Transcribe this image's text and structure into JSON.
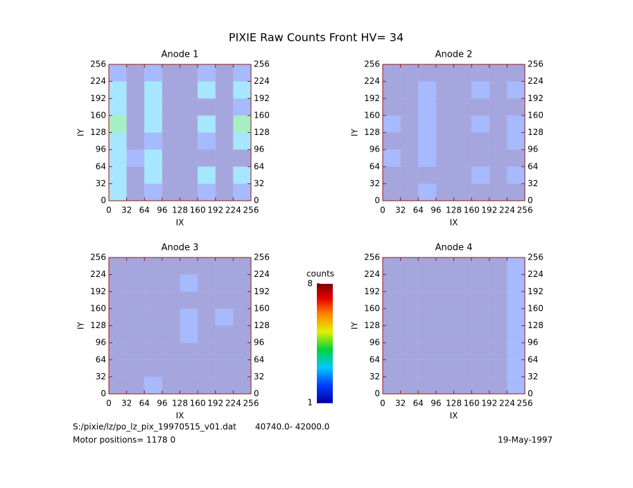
{
  "title": "PIXIE Raw Counts Front HV= 34",
  "colorbar": {
    "label": "counts",
    "lim": [
      1,
      8
    ],
    "ticks": [
      1,
      8
    ]
  },
  "footer": {
    "file": "S:/pixie/lz/po_lz_pix_19970515_v01.dat",
    "range": "40740.0- 42000.0",
    "motor": "Motor positions= 1178 0",
    "date": "19-May-1997"
  },
  "chart_data": [
    {
      "type": "heatmap",
      "title": "Anode 1",
      "xlabel": "IX",
      "ylabel": "IY",
      "xlim": [
        0,
        256
      ],
      "ylim": [
        0,
        256
      ],
      "xticks": [
        0,
        32,
        64,
        96,
        128,
        160,
        192,
        224,
        256
      ],
      "yticks": [
        0,
        32,
        64,
        96,
        128,
        160,
        192,
        224,
        256
      ],
      "z": [
        [
          3,
          1,
          2,
          1,
          1,
          2,
          1,
          2
        ],
        [
          3,
          1,
          3,
          1,
          1,
          3,
          1,
          3
        ],
        [
          3,
          2,
          3,
          1,
          1,
          1,
          1,
          1
        ],
        [
          3,
          1,
          2,
          1,
          1,
          2,
          1,
          3
        ],
        [
          4,
          1,
          3,
          1,
          1,
          3,
          1,
          4
        ],
        [
          3,
          1,
          3,
          1,
          1,
          1,
          1,
          2
        ],
        [
          3,
          1,
          3,
          1,
          1,
          3,
          1,
          3
        ],
        [
          2,
          1,
          2,
          1,
          1,
          2,
          1,
          2
        ]
      ]
    },
    {
      "type": "heatmap",
      "title": "Anode 2",
      "xlabel": "IX",
      "ylabel": "IY",
      "xlim": [
        0,
        256
      ],
      "ylim": [
        0,
        256
      ],
      "xticks": [
        0,
        32,
        64,
        96,
        128,
        160,
        192,
        224,
        256
      ],
      "yticks": [
        0,
        32,
        64,
        96,
        128,
        160,
        192,
        224,
        256
      ],
      "z": [
        [
          1,
          1,
          2,
          1,
          1,
          1,
          1,
          1
        ],
        [
          1,
          1,
          1,
          1,
          1,
          2,
          1,
          2
        ],
        [
          2,
          1,
          2,
          1,
          1,
          1,
          1,
          1
        ],
        [
          1,
          1,
          2,
          1,
          1,
          1,
          1,
          2
        ],
        [
          2,
          1,
          2,
          1,
          1,
          2,
          1,
          2
        ],
        [
          1,
          1,
          2,
          1,
          1,
          1,
          1,
          1
        ],
        [
          1,
          1,
          2,
          1,
          1,
          2,
          1,
          2
        ],
        [
          1,
          1,
          1,
          1,
          1,
          1,
          1,
          1
        ]
      ]
    },
    {
      "type": "heatmap",
      "title": "Anode 3",
      "xlabel": "IX",
      "ylabel": "IY",
      "xlim": [
        0,
        256
      ],
      "ylim": [
        0,
        256
      ],
      "xticks": [
        0,
        32,
        64,
        96,
        128,
        160,
        192,
        224,
        256
      ],
      "yticks": [
        0,
        32,
        64,
        96,
        128,
        160,
        192,
        224,
        256
      ],
      "z": [
        [
          1,
          1,
          2,
          1,
          1,
          1,
          1,
          1
        ],
        [
          1,
          1,
          1,
          1,
          1,
          1,
          1,
          1
        ],
        [
          1,
          1,
          1,
          1,
          1,
          1,
          1,
          1
        ],
        [
          1,
          1,
          1,
          1,
          2,
          1,
          1,
          1
        ],
        [
          1,
          1,
          1,
          1,
          2,
          1,
          2,
          1
        ],
        [
          1,
          1,
          1,
          1,
          1,
          1,
          1,
          1
        ],
        [
          1,
          1,
          1,
          1,
          2,
          1,
          1,
          1
        ],
        [
          1,
          1,
          1,
          1,
          1,
          1,
          1,
          1
        ]
      ]
    },
    {
      "type": "heatmap",
      "title": "Anode 4",
      "xlabel": "IX",
      "ylabel": "IY",
      "xlim": [
        0,
        256
      ],
      "ylim": [
        0,
        256
      ],
      "xticks": [
        0,
        32,
        64,
        96,
        128,
        160,
        192,
        224,
        256
      ],
      "yticks": [
        0,
        32,
        64,
        96,
        128,
        160,
        192,
        224,
        256
      ],
      "z": [
        [
          1,
          1,
          1,
          1,
          1,
          1,
          1,
          2
        ],
        [
          1,
          1,
          1,
          1,
          1,
          1,
          1,
          2
        ],
        [
          1,
          1,
          1,
          1,
          1,
          1,
          1,
          2
        ],
        [
          1,
          1,
          1,
          1,
          1,
          1,
          1,
          2
        ],
        [
          1,
          1,
          1,
          1,
          1,
          1,
          1,
          2
        ],
        [
          1,
          1,
          1,
          1,
          1,
          1,
          1,
          2
        ],
        [
          1,
          1,
          1,
          1,
          1,
          1,
          1,
          2
        ],
        [
          1,
          1,
          1,
          1,
          1,
          1,
          1,
          2
        ]
      ]
    }
  ]
}
